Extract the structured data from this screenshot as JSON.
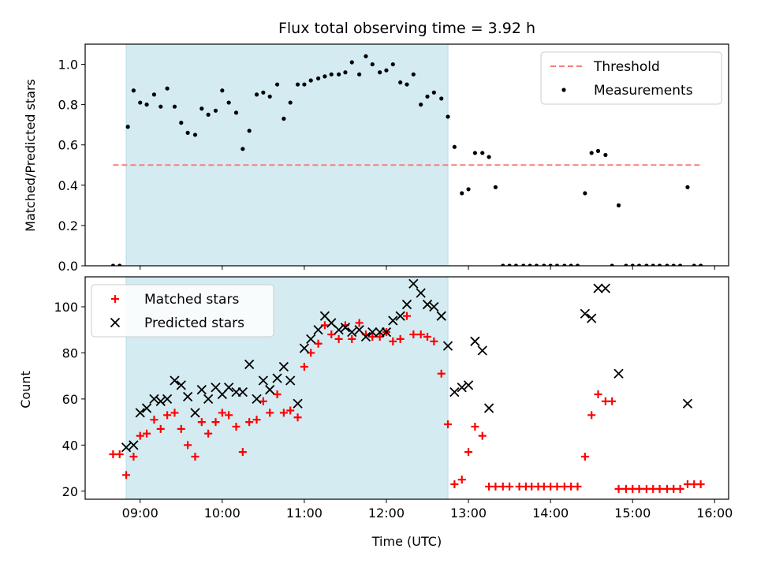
{
  "chart_data": {
    "type": "scatter",
    "title": "Flux total observing time = 3.92 h",
    "xlabel": "Time (UTC)",
    "x_ticks": [
      "09:00",
      "10:00",
      "11:00",
      "12:00",
      "13:00",
      "14:00",
      "15:00",
      "16:00"
    ],
    "x_tick_hours": [
      9,
      10,
      11,
      12,
      13,
      14,
      15,
      16
    ],
    "xlim": [
      8.33,
      16.17
    ],
    "shaded_span": [
      8.83,
      12.75
    ],
    "shade_color": "#d4ebf1",
    "panels": [
      {
        "ylabel": "Matched/Predicted stars",
        "ylim": [
          0,
          1.1
        ],
        "y_ticks": [
          "0.0",
          "0.2",
          "0.4",
          "0.6",
          "0.8",
          "1.0"
        ],
        "y_tick_values": [
          0,
          0.2,
          0.4,
          0.6,
          0.8,
          1.0
        ],
        "threshold": {
          "name": "Threshold",
          "value": 0.5,
          "x_range": [
            8.67,
            15.83
          ],
          "color": "#f08080"
        },
        "series": [
          {
            "name": "Measurements",
            "marker": "dot",
            "color": "#000000",
            "points": [
              [
                8.67,
                0.0
              ],
              [
                8.75,
                0.0
              ],
              [
                8.85,
                0.69
              ],
              [
                8.92,
                0.87
              ],
              [
                9.0,
                0.81
              ],
              [
                9.08,
                0.8
              ],
              [
                9.17,
                0.85
              ],
              [
                9.25,
                0.79
              ],
              [
                9.33,
                0.88
              ],
              [
                9.42,
                0.79
              ],
              [
                9.5,
                0.71
              ],
              [
                9.58,
                0.66
              ],
              [
                9.67,
                0.65
              ],
              [
                9.75,
                0.78
              ],
              [
                9.83,
                0.75
              ],
              [
                9.92,
                0.77
              ],
              [
                10.0,
                0.87
              ],
              [
                10.08,
                0.81
              ],
              [
                10.17,
                0.76
              ],
              [
                10.25,
                0.58
              ],
              [
                10.33,
                0.67
              ],
              [
                10.42,
                0.85
              ],
              [
                10.5,
                0.86
              ],
              [
                10.58,
                0.84
              ],
              [
                10.67,
                0.9
              ],
              [
                10.75,
                0.73
              ],
              [
                10.83,
                0.81
              ],
              [
                10.92,
                0.9
              ],
              [
                11.0,
                0.9
              ],
              [
                11.08,
                0.92
              ],
              [
                11.17,
                0.93
              ],
              [
                11.25,
                0.94
              ],
              [
                11.33,
                0.95
              ],
              [
                11.42,
                0.95
              ],
              [
                11.5,
                0.96
              ],
              [
                11.58,
                1.01
              ],
              [
                11.67,
                0.95
              ],
              [
                11.75,
                1.04
              ],
              [
                11.83,
                1.0
              ],
              [
                11.92,
                0.96
              ],
              [
                12.0,
                0.97
              ],
              [
                12.08,
                1.0
              ],
              [
                12.17,
                0.91
              ],
              [
                12.25,
                0.9
              ],
              [
                12.33,
                0.95
              ],
              [
                12.42,
                0.8
              ],
              [
                12.5,
                0.84
              ],
              [
                12.58,
                0.86
              ],
              [
                12.67,
                0.83
              ],
              [
                12.75,
                0.74
              ],
              [
                12.83,
                0.59
              ],
              [
                12.92,
                0.36
              ],
              [
                13.0,
                0.38
              ],
              [
                13.08,
                0.56
              ],
              [
                13.17,
                0.56
              ],
              [
                13.25,
                0.54
              ],
              [
                13.33,
                0.39
              ],
              [
                13.42,
                0.0
              ],
              [
                13.5,
                0.0
              ],
              [
                13.58,
                0.0
              ],
              [
                13.67,
                0.0
              ],
              [
                13.75,
                0.0
              ],
              [
                13.83,
                0.0
              ],
              [
                13.92,
                0.0
              ],
              [
                14.0,
                0.0
              ],
              [
                14.08,
                0.0
              ],
              [
                14.17,
                0.0
              ],
              [
                14.25,
                0.0
              ],
              [
                14.33,
                0.0
              ],
              [
                14.42,
                0.36
              ],
              [
                14.5,
                0.56
              ],
              [
                14.58,
                0.57
              ],
              [
                14.67,
                0.55
              ],
              [
                14.75,
                0.0
              ],
              [
                14.83,
                0.3
              ],
              [
                14.92,
                0.0
              ],
              [
                15.0,
                0.0
              ],
              [
                15.08,
                0.0
              ],
              [
                15.17,
                0.0
              ],
              [
                15.25,
                0.0
              ],
              [
                15.33,
                0.0
              ],
              [
                15.42,
                0.0
              ],
              [
                15.5,
                0.0
              ],
              [
                15.58,
                0.0
              ],
              [
                15.67,
                0.39
              ],
              [
                15.75,
                0.0
              ],
              [
                15.83,
                0.0
              ]
            ]
          }
        ],
        "legend": {
          "placement": "top-right",
          "entries": [
            "Threshold",
            "Measurements"
          ]
        }
      },
      {
        "ylabel": "Count",
        "ylim": [
          16.5,
          113
        ],
        "y_ticks": [
          "20",
          "40",
          "60",
          "80",
          "100"
        ],
        "y_tick_values": [
          20,
          40,
          60,
          80,
          100
        ],
        "series": [
          {
            "name": "Matched stars",
            "marker": "plus",
            "color": "#ff0000",
            "points": [
              [
                8.67,
                36
              ],
              [
                8.75,
                36
              ],
              [
                8.83,
                27
              ],
              [
                8.92,
                35
              ],
              [
                9.0,
                44
              ],
              [
                9.08,
                45
              ],
              [
                9.17,
                51
              ],
              [
                9.25,
                47
              ],
              [
                9.33,
                53
              ],
              [
                9.42,
                54
              ],
              [
                9.5,
                47
              ],
              [
                9.58,
                40
              ],
              [
                9.67,
                35
              ],
              [
                9.75,
                50
              ],
              [
                9.83,
                45
              ],
              [
                9.92,
                50
              ],
              [
                10.0,
                54
              ],
              [
                10.08,
                53
              ],
              [
                10.17,
                48
              ],
              [
                10.25,
                37
              ],
              [
                10.33,
                50
              ],
              [
                10.42,
                51
              ],
              [
                10.5,
                59
              ],
              [
                10.58,
                54
              ],
              [
                10.67,
                62
              ],
              [
                10.75,
                54
              ],
              [
                10.83,
                55
              ],
              [
                10.92,
                52
              ],
              [
                11.0,
                74
              ],
              [
                11.08,
                80
              ],
              [
                11.17,
                84
              ],
              [
                11.25,
                92
              ],
              [
                11.33,
                88
              ],
              [
                11.42,
                86
              ],
              [
                11.5,
                92
              ],
              [
                11.58,
                86
              ],
              [
                11.67,
                93
              ],
              [
                11.75,
                88
              ],
              [
                11.83,
                87
              ],
              [
                11.92,
                87
              ],
              [
                12.0,
                89
              ],
              [
                12.08,
                85
              ],
              [
                12.17,
                86
              ],
              [
                12.25,
                96
              ],
              [
                12.33,
                88
              ],
              [
                12.42,
                88
              ],
              [
                12.5,
                87
              ],
              [
                12.58,
                85
              ],
              [
                12.67,
                71
              ],
              [
                12.75,
                49
              ],
              [
                12.83,
                23
              ],
              [
                12.92,
                25
              ],
              [
                13.0,
                37
              ],
              [
                13.08,
                48
              ],
              [
                13.17,
                44
              ],
              [
                13.25,
                22
              ],
              [
                13.33,
                22
              ],
              [
                13.42,
                22
              ],
              [
                13.5,
                22
              ],
              [
                13.62,
                22
              ],
              [
                13.7,
                22
              ],
              [
                13.77,
                22
              ],
              [
                13.85,
                22
              ],
              [
                13.92,
                22
              ],
              [
                14.0,
                22
              ],
              [
                14.08,
                22
              ],
              [
                14.17,
                22
              ],
              [
                14.25,
                22
              ],
              [
                14.33,
                22
              ],
              [
                14.42,
                35
              ],
              [
                14.5,
                53
              ],
              [
                14.58,
                62
              ],
              [
                14.67,
                59
              ],
              [
                14.75,
                59
              ],
              [
                14.83,
                21
              ],
              [
                14.92,
                21
              ],
              [
                15.0,
                21
              ],
              [
                15.08,
                21
              ],
              [
                15.17,
                21
              ],
              [
                15.25,
                21
              ],
              [
                15.33,
                21
              ],
              [
                15.42,
                21
              ],
              [
                15.5,
                21
              ],
              [
                15.58,
                21
              ],
              [
                15.67,
                23
              ],
              [
                15.75,
                23
              ],
              [
                15.83,
                23
              ]
            ]
          },
          {
            "name": "Predicted stars",
            "marker": "x",
            "color": "#000000",
            "points": [
              [
                8.83,
                39
              ],
              [
                8.92,
                40
              ],
              [
                9.0,
                54
              ],
              [
                9.08,
                56
              ],
              [
                9.17,
                60
              ],
              [
                9.25,
                59
              ],
              [
                9.33,
                60
              ],
              [
                9.42,
                68
              ],
              [
                9.5,
                66
              ],
              [
                9.58,
                61
              ],
              [
                9.67,
                54
              ],
              [
                9.75,
                64
              ],
              [
                9.83,
                60
              ],
              [
                9.92,
                65
              ],
              [
                10.0,
                62
              ],
              [
                10.08,
                65
              ],
              [
                10.17,
                63
              ],
              [
                10.25,
                63
              ],
              [
                10.33,
                75
              ],
              [
                10.42,
                60
              ],
              [
                10.5,
                68
              ],
              [
                10.58,
                64
              ],
              [
                10.67,
                69
              ],
              [
                10.75,
                74
              ],
              [
                10.83,
                68
              ],
              [
                10.92,
                58
              ],
              [
                11.0,
                82
              ],
              [
                11.08,
                86
              ],
              [
                11.17,
                90
              ],
              [
                11.25,
                96
              ],
              [
                11.33,
                93
              ],
              [
                11.42,
                90
              ],
              [
                11.5,
                91
              ],
              [
                11.58,
                89
              ],
              [
                11.67,
                90
              ],
              [
                11.75,
                87
              ],
              [
                11.83,
                89
              ],
              [
                11.92,
                89
              ],
              [
                12.0,
                89
              ],
              [
                12.08,
                94
              ],
              [
                12.17,
                96
              ],
              [
                12.25,
                101
              ],
              [
                12.33,
                110
              ],
              [
                12.42,
                106
              ],
              [
                12.5,
                101
              ],
              [
                12.58,
                100
              ],
              [
                12.67,
                96
              ],
              [
                12.75,
                83
              ],
              [
                12.83,
                63
              ],
              [
                12.92,
                65
              ],
              [
                13.0,
                66
              ],
              [
                13.08,
                85
              ],
              [
                13.17,
                81
              ],
              [
                13.25,
                56
              ],
              [
                14.42,
                97
              ],
              [
                14.5,
                95
              ],
              [
                14.58,
                108
              ],
              [
                14.67,
                108
              ],
              [
                14.83,
                71
              ],
              [
                15.67,
                58
              ]
            ]
          }
        ],
        "legend": {
          "placement": "top-left",
          "entries": [
            "Matched stars",
            "Predicted stars"
          ]
        }
      }
    ]
  }
}
